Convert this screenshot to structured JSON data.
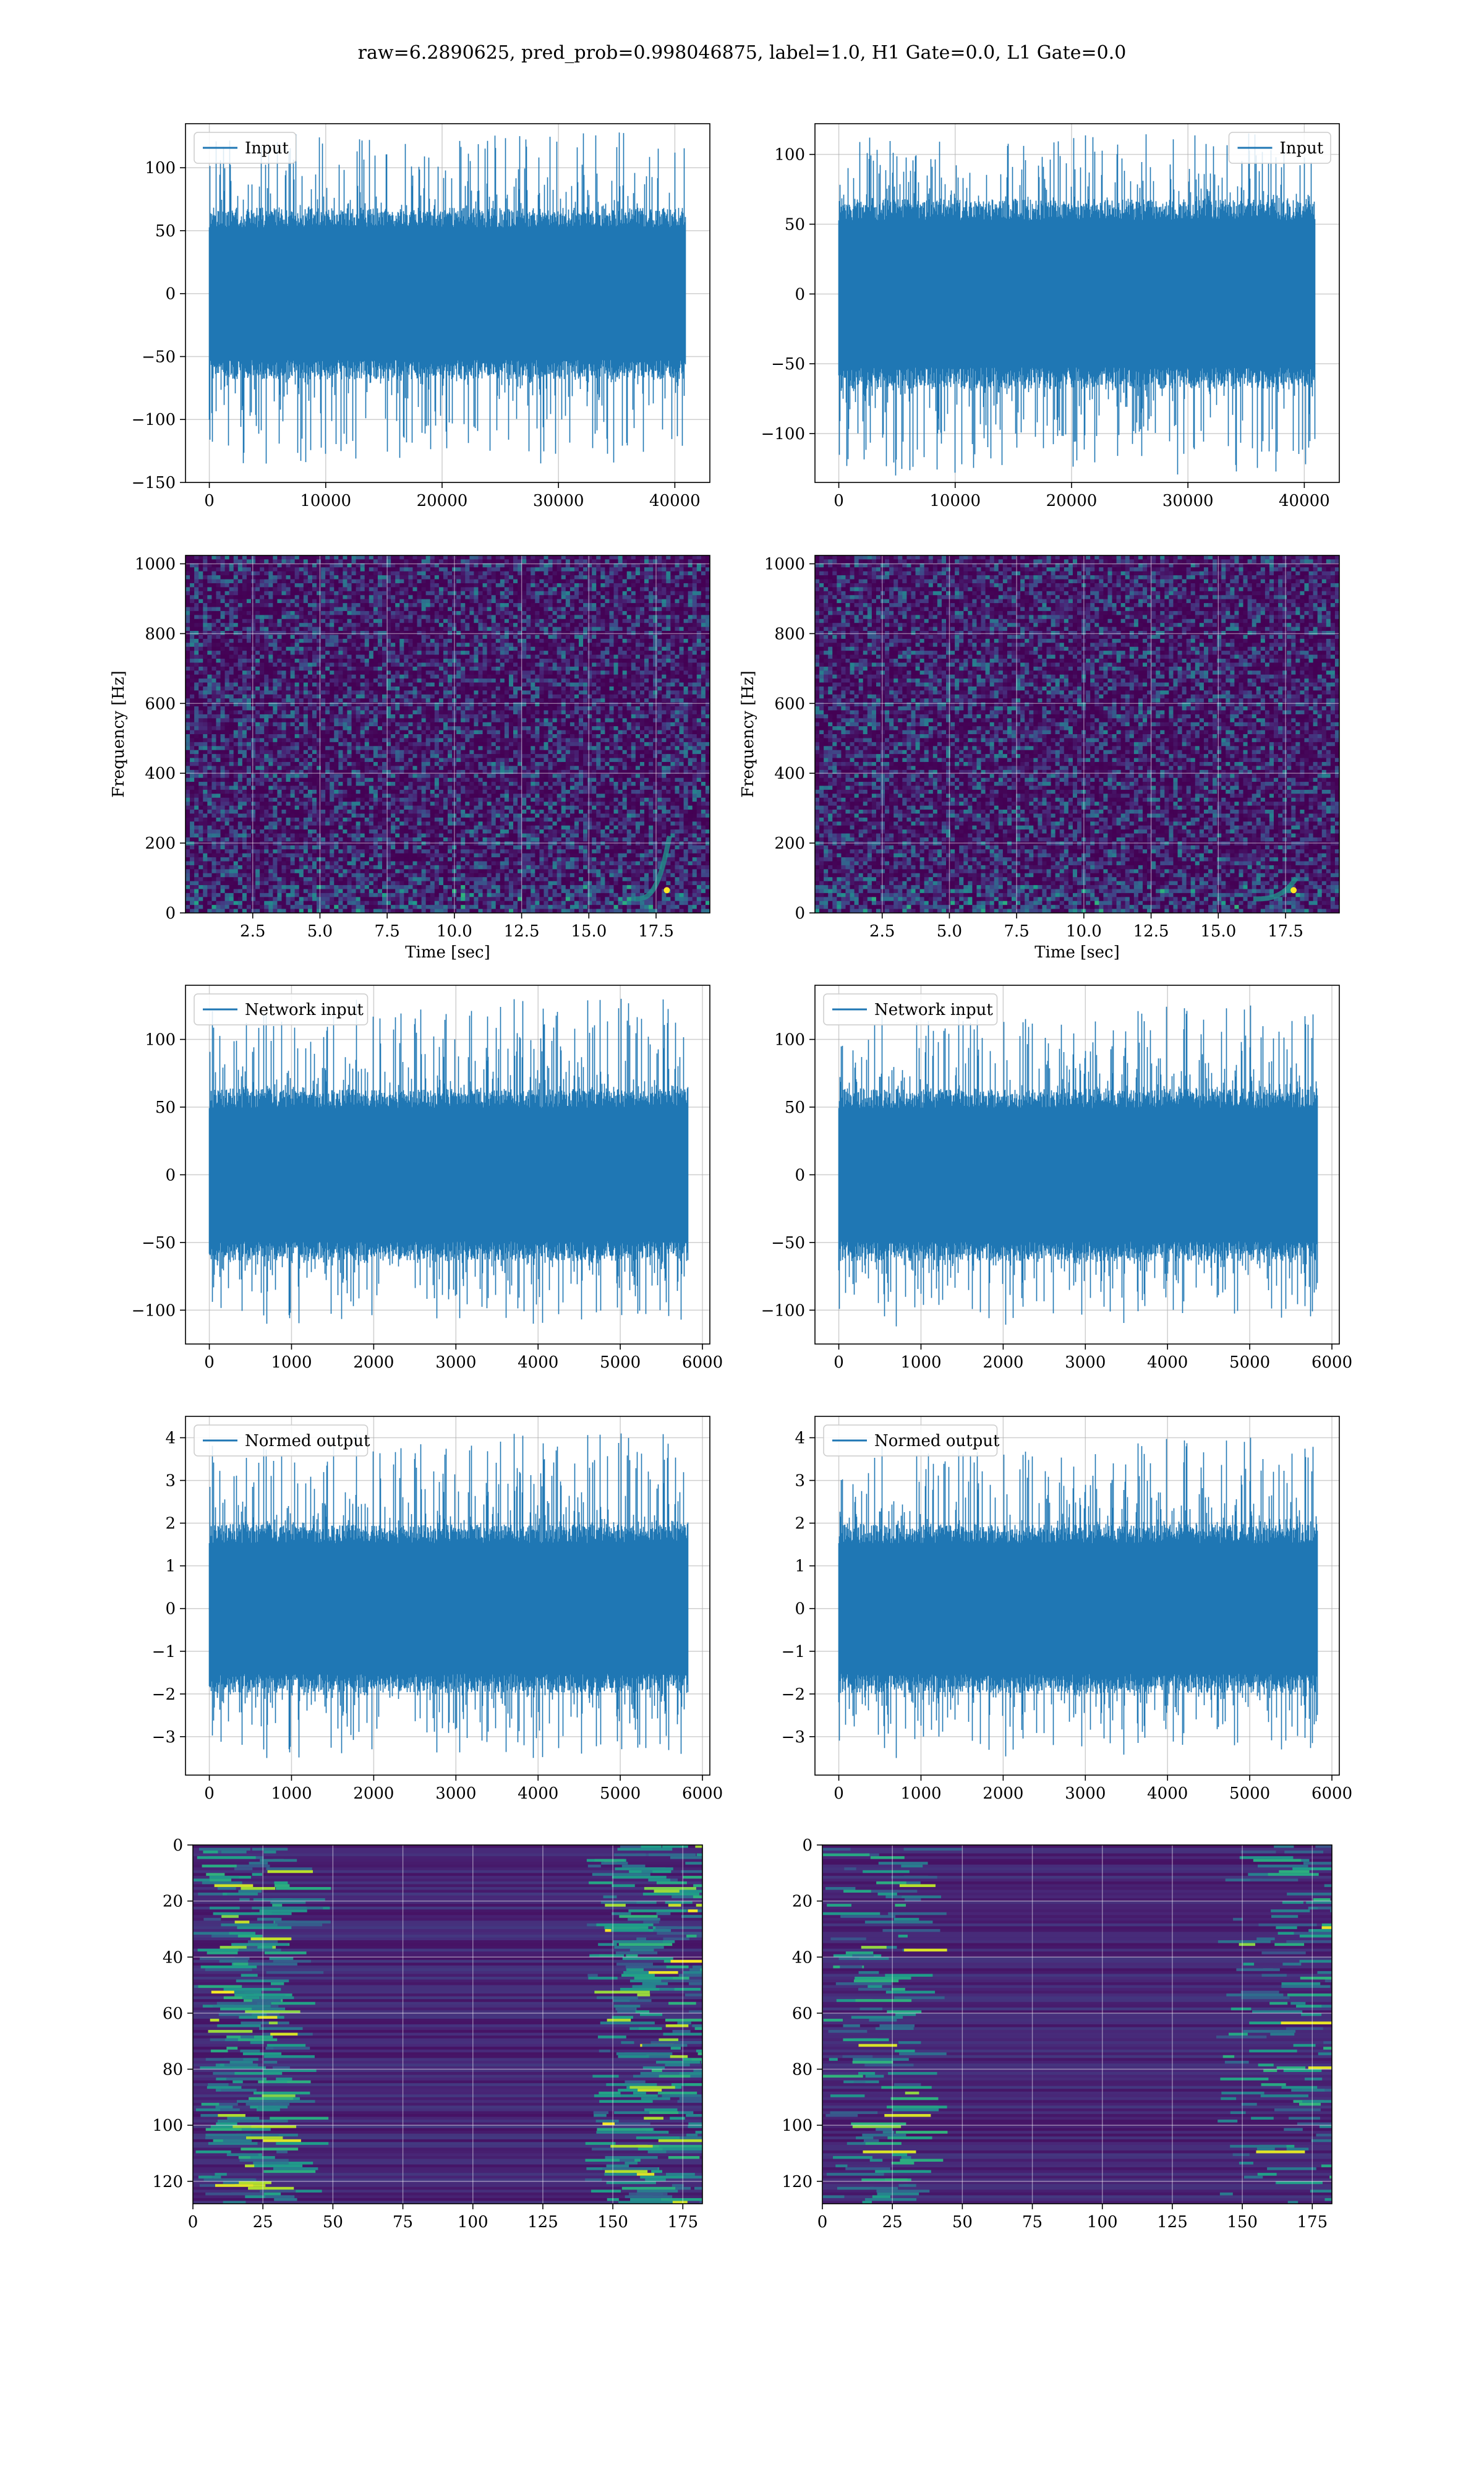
{
  "suptitle": "raw=6.2890625, pred_prob=0.998046875, label=1.0, H1 Gate=0.0, L1 Gate=0.0",
  "colors": {
    "line": "#1f77b4",
    "grid": "#b0b0b0",
    "viridis_dark": "#440154",
    "viridis_mid": "#21918c",
    "viridis_bright": "#fde725"
  },
  "chart_data": [
    {
      "id": "h1-input",
      "type": "line",
      "legend": "Input",
      "legend_loc": "upper left",
      "xlim": [
        -2048,
        43008
      ],
      "ylim": [
        -150,
        135
      ],
      "xticks": [
        0,
        10000,
        20000,
        30000,
        40000
      ],
      "xtick_labels": [
        "0",
        "10000",
        "20000",
        "30000",
        "40000"
      ],
      "yticks": [
        -150,
        -100,
        -50,
        0,
        50,
        100
      ],
      "ytick_labels": [
        "−150",
        "−100",
        "−50",
        "0",
        "50",
        "100"
      ],
      "signal": {
        "n_samples": 40960,
        "band": [
          -62,
          62
        ],
        "peak_min": -135,
        "peak_max": 128,
        "seed": 11
      },
      "grid": true
    },
    {
      "id": "l1-input",
      "type": "line",
      "legend": "Input",
      "legend_loc": "upper right",
      "xlim": [
        -2048,
        43008
      ],
      "ylim": [
        -135,
        122
      ],
      "xticks": [
        0,
        10000,
        20000,
        30000,
        40000
      ],
      "xtick_labels": [
        "0",
        "10000",
        "20000",
        "30000",
        "40000"
      ],
      "yticks": [
        -100,
        -50,
        0,
        50,
        100
      ],
      "ytick_labels": [
        "−100",
        "−50",
        "0",
        "50",
        "100"
      ],
      "signal": {
        "n_samples": 40960,
        "band": [
          -62,
          62
        ],
        "peak_min": -130,
        "peak_max": 115,
        "seed": 23
      },
      "grid": true
    },
    {
      "id": "h1-spectrogram",
      "type": "heatmap",
      "xlim": [
        0,
        19.5
      ],
      "ylim": [
        0,
        1024
      ],
      "xticks": [
        2.5,
        5.0,
        7.5,
        10.0,
        12.5,
        15.0,
        17.5
      ],
      "xtick_labels": [
        "2.5",
        "5.0",
        "7.5",
        "10.0",
        "12.5",
        "15.0",
        "17.5"
      ],
      "yticks": [
        0,
        200,
        400,
        600,
        800,
        1000
      ],
      "ytick_labels": [
        "0",
        "200",
        "400",
        "600",
        "800",
        "1000"
      ],
      "xlabel": "Time [sec]",
      "ylabel": "Frequency [Hz]",
      "chirp": {
        "t_merge": 18.0,
        "f_max": 220,
        "f_min": 40,
        "duration": 1.3
      },
      "grid": true,
      "colormap": "viridis",
      "seed": 5
    },
    {
      "id": "l1-spectrogram",
      "type": "heatmap",
      "xlim": [
        0,
        19.5
      ],
      "ylim": [
        0,
        1024
      ],
      "xticks": [
        2.5,
        5.0,
        7.5,
        10.0,
        12.5,
        15.0,
        17.5
      ],
      "xtick_labels": [
        "2.5",
        "5.0",
        "7.5",
        "10.0",
        "12.5",
        "15.0",
        "17.5"
      ],
      "yticks": [
        0,
        200,
        400,
        600,
        800,
        1000
      ],
      "ytick_labels": [
        "0",
        "200",
        "400",
        "600",
        "800",
        "1000"
      ],
      "xlabel": "Time [sec]",
      "ylabel": "Frequency [Hz]",
      "chirp": {
        "t_merge": 17.9,
        "f_max": 100,
        "f_min": 40,
        "duration": 1.6
      },
      "grid": true,
      "colormap": "viridis",
      "seed": 9
    },
    {
      "id": "h1-network-input",
      "type": "line",
      "legend": "Network input",
      "legend_loc": "upper left",
      "xlim": [
        -290,
        6090
      ],
      "ylim": [
        -125,
        140
      ],
      "xticks": [
        0,
        1000,
        2000,
        3000,
        4000,
        5000,
        6000
      ],
      "xtick_labels": [
        "0",
        "1000",
        "2000",
        "3000",
        "4000",
        "5000",
        "6000"
      ],
      "yticks": [
        -100,
        -50,
        0,
        50,
        100
      ],
      "ytick_labels": [
        "−100",
        "−50",
        "0",
        "50",
        "100"
      ],
      "signal": {
        "n_samples": 5830,
        "band": [
          -58,
          58
        ],
        "peak_min": -110,
        "peak_max": 130,
        "seed": 31
      },
      "grid": true
    },
    {
      "id": "l1-network-input",
      "type": "line",
      "legend": "Network input",
      "legend_loc": "upper left",
      "xlim": [
        -290,
        6090
      ],
      "ylim": [
        -125,
        140
      ],
      "xticks": [
        0,
        1000,
        2000,
        3000,
        4000,
        5000,
        6000
      ],
      "xtick_labels": [
        "0",
        "1000",
        "2000",
        "3000",
        "4000",
        "5000",
        "6000"
      ],
      "yticks": [
        -100,
        -50,
        0,
        50,
        100
      ],
      "ytick_labels": [
        "−100",
        "−50",
        "0",
        "50",
        "100"
      ],
      "signal": {
        "n_samples": 5830,
        "band": [
          -58,
          58
        ],
        "peak_min": -112,
        "peak_max": 125,
        "seed": 37
      },
      "grid": true
    },
    {
      "id": "h1-normed-output",
      "type": "line",
      "legend": "Normed output",
      "legend_loc": "upper left",
      "xlim": [
        -290,
        6090
      ],
      "ylim": [
        -3.9,
        4.5
      ],
      "xticks": [
        0,
        1000,
        2000,
        3000,
        4000,
        5000,
        6000
      ],
      "xtick_labels": [
        "0",
        "1000",
        "2000",
        "3000",
        "4000",
        "5000",
        "6000"
      ],
      "yticks": [
        -3,
        -2,
        -1,
        0,
        1,
        2,
        3,
        4
      ],
      "ytick_labels": [
        "−3",
        "−2",
        "−1",
        "0",
        "1",
        "2",
        "3",
        "4"
      ],
      "signal": {
        "n_samples": 5830,
        "band": [
          -1.8,
          1.8
        ],
        "peak_min": -3.5,
        "peak_max": 4.1,
        "seed": 31
      },
      "grid": true
    },
    {
      "id": "l1-normed-output",
      "type": "line",
      "legend": "Normed output",
      "legend_loc": "upper left",
      "xlim": [
        -290,
        6090
      ],
      "ylim": [
        -3.9,
        4.5
      ],
      "xticks": [
        0,
        1000,
        2000,
        3000,
        4000,
        5000,
        6000
      ],
      "xtick_labels": [
        "0",
        "1000",
        "2000",
        "3000",
        "4000",
        "5000",
        "6000"
      ],
      "yticks": [
        -3,
        -2,
        -1,
        0,
        1,
        2,
        3,
        4
      ],
      "ytick_labels": [
        "−3",
        "−2",
        "−1",
        "0",
        "1",
        "2",
        "3",
        "4"
      ],
      "signal": {
        "n_samples": 5830,
        "band": [
          -1.8,
          1.8
        ],
        "peak_min": -3.5,
        "peak_max": 4.0,
        "seed": 37
      },
      "grid": true
    },
    {
      "id": "h1-feature-map",
      "type": "heatmap",
      "xlim": [
        0,
        182
      ],
      "ylim": [
        128,
        0
      ],
      "xticks": [
        0,
        25,
        50,
        75,
        100,
        125,
        150,
        175
      ],
      "xtick_labels": [
        "0",
        "25",
        "50",
        "75",
        "100",
        "125",
        "150",
        "175"
      ],
      "yticks": [
        0,
        20,
        40,
        60,
        80,
        100,
        120
      ],
      "ytick_labels": [
        "0",
        "20",
        "40",
        "60",
        "80",
        "100",
        "120"
      ],
      "grid": true,
      "colormap": "viridis",
      "seed": 41,
      "activity": "high"
    },
    {
      "id": "l1-feature-map",
      "type": "heatmap",
      "xlim": [
        0,
        182
      ],
      "ylim": [
        128,
        0
      ],
      "xticks": [
        0,
        25,
        50,
        75,
        100,
        125,
        150,
        175
      ],
      "xtick_labels": [
        "0",
        "25",
        "50",
        "75",
        "100",
        "125",
        "150",
        "175"
      ],
      "yticks": [
        0,
        20,
        40,
        60,
        80,
        100,
        120
      ],
      "ytick_labels": [
        "0",
        "20",
        "40",
        "60",
        "80",
        "100",
        "120"
      ],
      "grid": true,
      "colormap": "viridis",
      "seed": 43,
      "activity": "low"
    }
  ]
}
